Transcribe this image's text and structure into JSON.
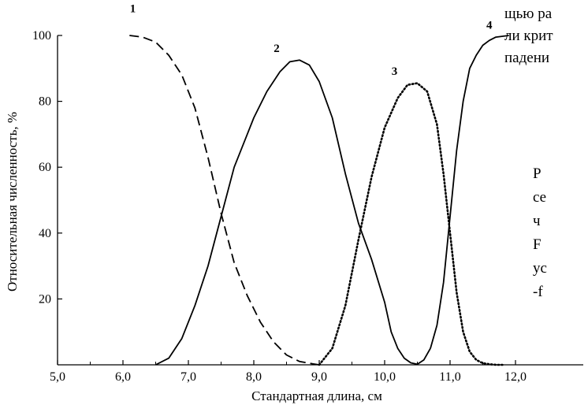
{
  "chart_data": {
    "type": "line",
    "xlabel": "Стандартная длина, см",
    "ylabel": "Относительная численность, %",
    "xlim": [
      5.0,
      12.5
    ],
    "ylim": [
      0,
      100
    ],
    "x_ticks": [
      "5,0",
      "6,0",
      "7,0",
      "8,0",
      "9,0",
      "10,0",
      "11,0",
      "12,0"
    ],
    "y_ticks": [
      "20",
      "40",
      "60",
      "80",
      "100"
    ],
    "grid": false,
    "series": [
      {
        "name": "1",
        "style": "dashed",
        "x": [
          6.1,
          6.3,
          6.5,
          6.7,
          6.9,
          7.1,
          7.3,
          7.5,
          7.7,
          7.9,
          8.1,
          8.3,
          8.5,
          8.7,
          8.9,
          9.0
        ],
        "y": [
          100,
          99.5,
          98,
          94,
          88,
          78,
          63,
          46,
          31,
          21,
          13,
          7,
          3,
          1,
          0.3,
          0
        ]
      },
      {
        "name": "2",
        "style": "solid",
        "x": [
          6.5,
          6.7,
          6.9,
          7.1,
          7.3,
          7.5,
          7.7,
          7.9,
          8.0,
          8.2,
          8.4,
          8.55,
          8.7,
          8.85,
          9.0,
          9.2,
          9.4,
          9.6,
          9.8,
          10.0,
          10.1,
          10.2,
          10.3,
          10.4,
          10.5,
          10.6,
          10.7
        ],
        "y": [
          0,
          2,
          8,
          18,
          30,
          45,
          60,
          70,
          75,
          83,
          89,
          92,
          92.5,
          91,
          86,
          75,
          58,
          43,
          32,
          19,
          10,
          5,
          2,
          0.6,
          0.2,
          1.5,
          5
        ]
      },
      {
        "name": "3",
        "style": "dotted",
        "x": [
          9.0,
          9.2,
          9.4,
          9.6,
          9.8,
          10.0,
          10.2,
          10.35,
          10.5,
          10.65,
          10.8,
          10.9,
          11.0,
          11.1,
          11.2,
          11.3,
          11.4,
          11.5,
          11.6,
          11.7,
          11.8
        ],
        "y": [
          0,
          5,
          18,
          38,
          57,
          72,
          81,
          85,
          85.5,
          83,
          73,
          58,
          40,
          22,
          10,
          4,
          1.5,
          0.5,
          0.2,
          0,
          0
        ]
      },
      {
        "name": "4",
        "style": "solid",
        "x": [
          10.7,
          10.8,
          10.9,
          11.0,
          11.1,
          11.2,
          11.3,
          11.4,
          11.5,
          11.6,
          11.7,
          11.9
        ],
        "y": [
          5,
          12,
          25,
          45,
          65,
          80,
          90,
          94,
          97,
          98.5,
          99.5,
          100
        ]
      }
    ],
    "series_labels": [
      {
        "text": "1",
        "x": 6.15,
        "y": 107
      },
      {
        "text": "2",
        "x": 8.35,
        "y": 95
      },
      {
        "text": "3",
        "x": 10.15,
        "y": 88
      },
      {
        "text": "4",
        "x": 11.6,
        "y": 102
      }
    ]
  },
  "side_text": {
    "lines_top": [
      "щью ра",
      "ли крит",
      "падени"
    ],
    "lines_bottom": [
      "Р",
      "се",
      "ч",
      "F",
      "ус",
      "-f"
    ]
  }
}
